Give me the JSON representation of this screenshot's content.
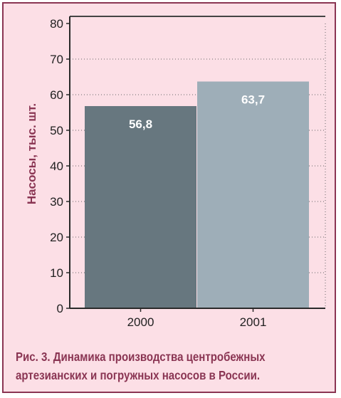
{
  "chart_data": {
    "type": "bar",
    "categories": [
      "2000",
      "2001"
    ],
    "values": [
      56.8,
      63.7
    ],
    "value_labels": [
      "56,8",
      "63,7"
    ],
    "bar_colors": [
      "#67777f",
      "#9eaeb8"
    ],
    "title": "",
    "xlabel": "",
    "ylabel": "Насосы, тыс. шт.",
    "ylim": [
      0,
      80
    ],
    "yticks": [
      0,
      10,
      20,
      30,
      40,
      50,
      60,
      70,
      80
    ],
    "grid": "dotted horizontal"
  },
  "caption": {
    "line1": "Рис. 3. Динамика производства центробежных",
    "line2": "артезианских и погружных насосов в России."
  },
  "colors": {
    "frame": "#8a3553",
    "plot_background": "#fcdfe6",
    "axis": "#2a2a2a",
    "grid": "#666666"
  }
}
